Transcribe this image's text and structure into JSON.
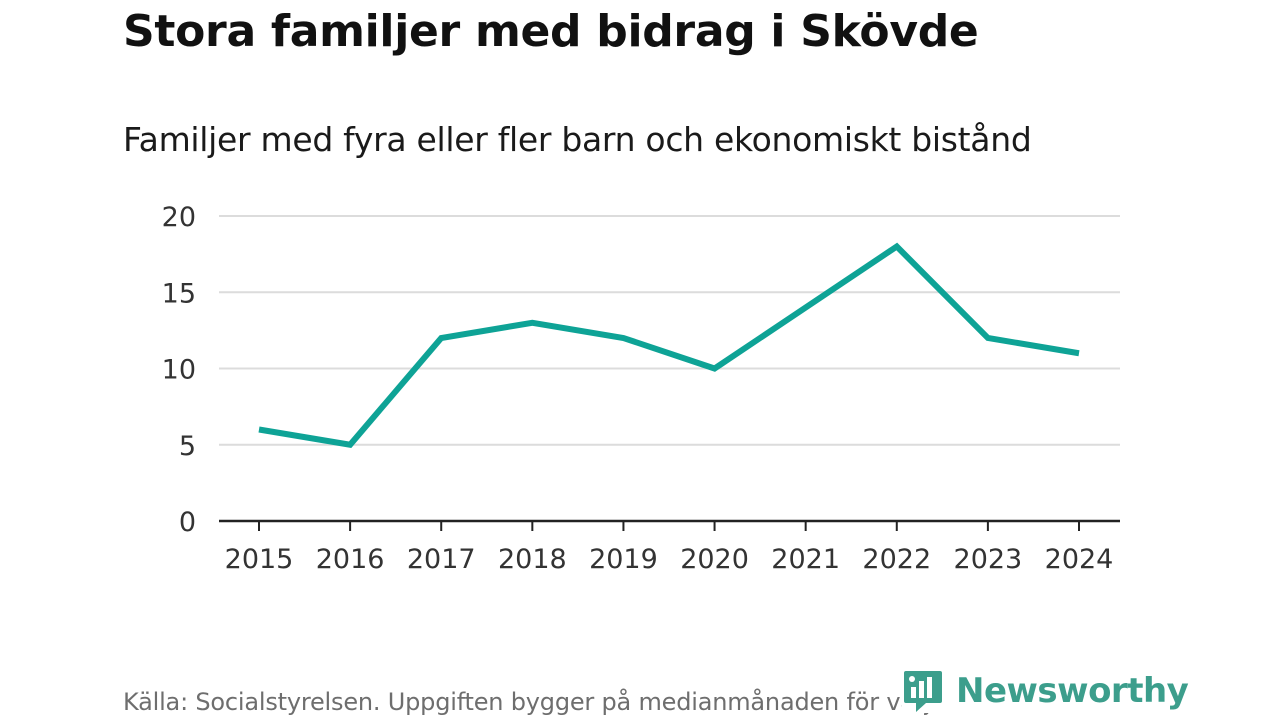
{
  "header": {
    "title": "Stora familjer med bidrag i Skövde"
  },
  "chart_data": {
    "type": "line",
    "title": "Familjer med fyra eller fler barn och ekonomiskt bistånd",
    "xlabel": "",
    "ylabel": "",
    "categories": [
      "2015",
      "2016",
      "2017",
      "2018",
      "2019",
      "2020",
      "2021",
      "2022",
      "2023",
      "2024"
    ],
    "series": [
      {
        "name": "Familjer med fyra eller fler barn och ekonomiskt bistånd",
        "values": [
          6,
          5,
          12,
          13,
          12,
          10,
          14,
          18,
          12,
          11
        ]
      }
    ],
    "ylim": [
      0,
      20
    ],
    "yticks": [
      0,
      5,
      10,
      15,
      20
    ],
    "grid": true,
    "legend": "none",
    "line_color": "#0ea396"
  },
  "footer": {
    "source": "Källa: Socialstyrelsen. Uppgiften bygger på medianmånaden för varje år",
    "logo_text": "Newsworthy",
    "logo_color": "#3c9e8c"
  }
}
